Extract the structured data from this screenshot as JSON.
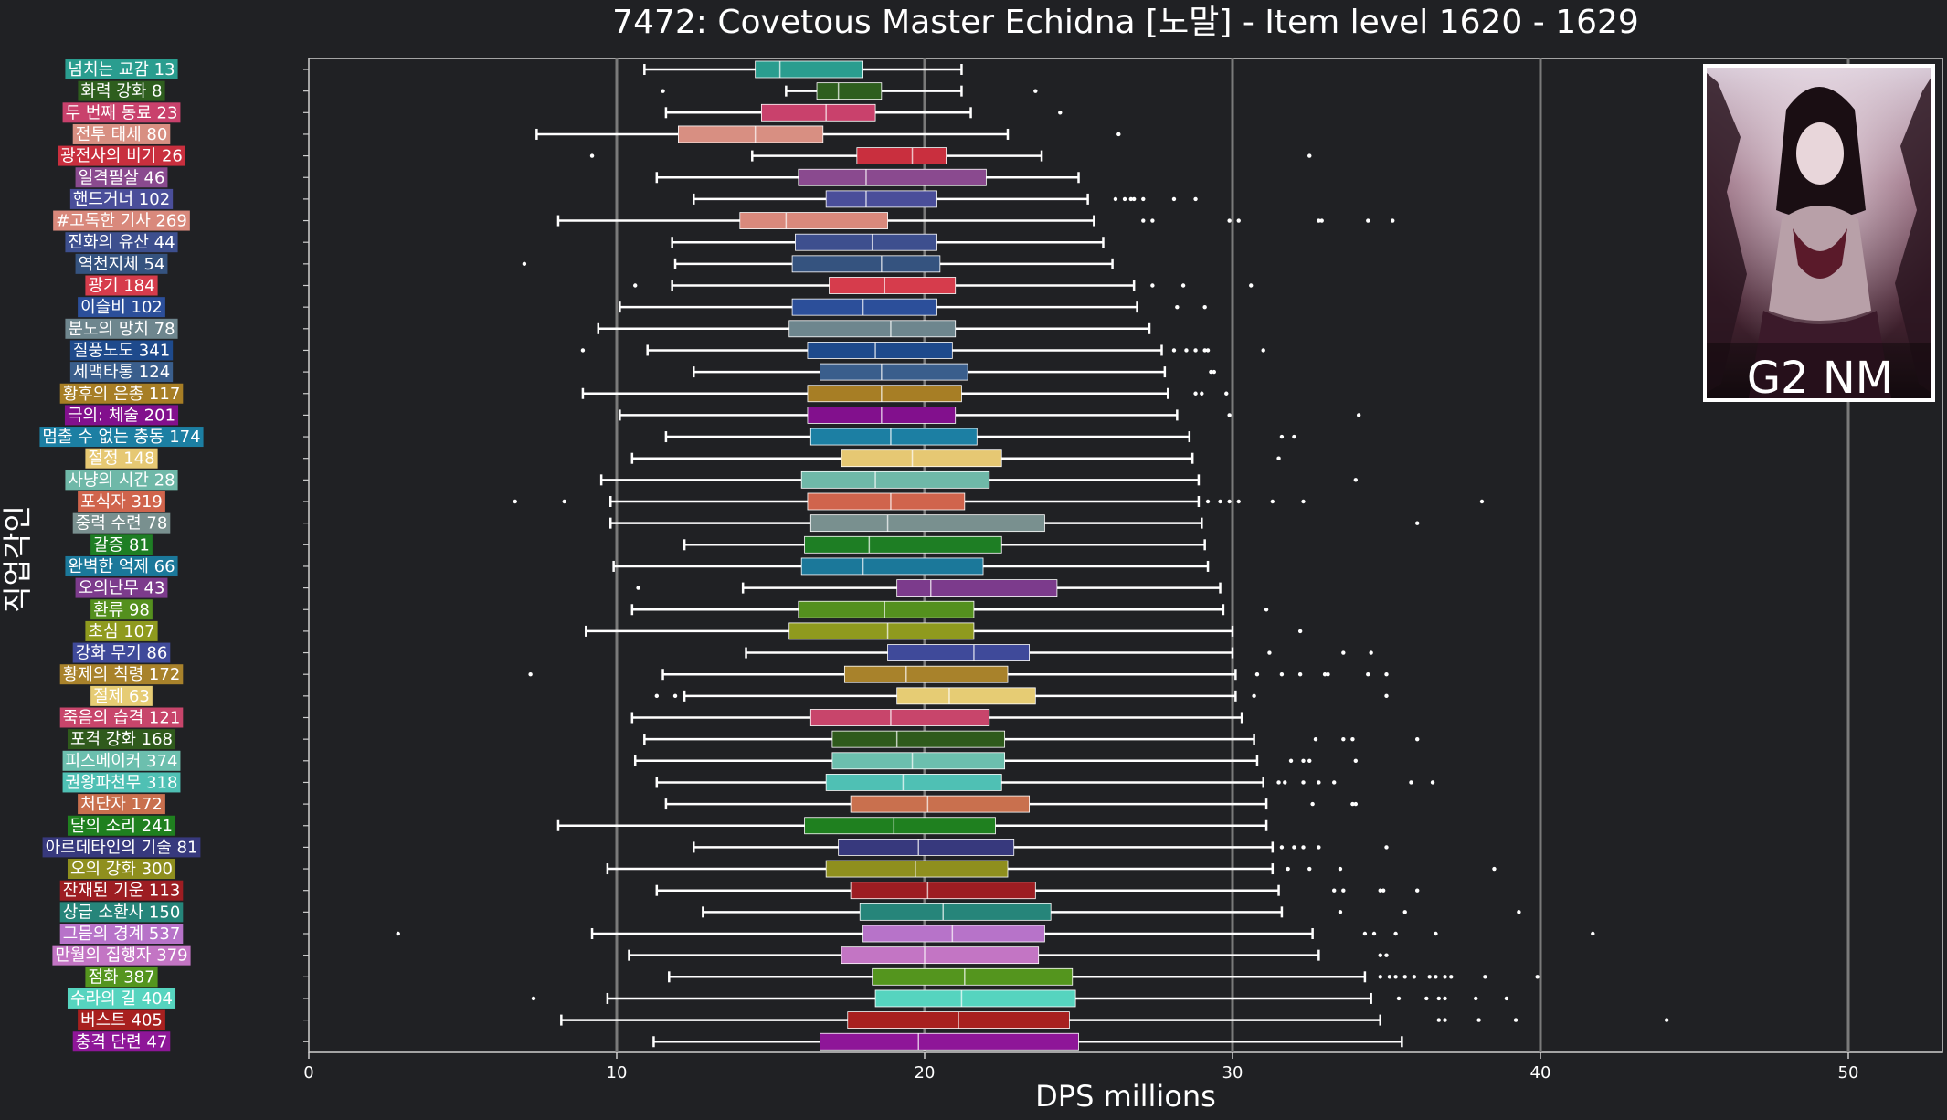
{
  "chart_data": {
    "type": "boxplot",
    "orientation": "horizontal",
    "title": "7472: Covetous Master Echidna [노말] - Item level 1620 - 1629",
    "xlabel": "DPS millions",
    "ylabel": "직업각인",
    "xlim": [
      0,
      53
    ],
    "xticks": [
      0,
      10,
      20,
      30,
      40,
      50
    ],
    "grid": "vertical",
    "background": "#202124",
    "badge": "G2 NM",
    "categories": [
      {
        "label": "넘치는 교감 13",
        "color": "#2a9d8f",
        "q1": 14.5,
        "med": 15.3,
        "q3": 18.0,
        "lo": 10.9,
        "hi": 21.2,
        "out": []
      },
      {
        "label": "화력 강화 8",
        "color": "#2e5e1e",
        "q1": 16.5,
        "med": 17.2,
        "q3": 18.6,
        "lo": 15.5,
        "hi": 21.2,
        "out": [
          11.5,
          23.6
        ]
      },
      {
        "label": "두 번째 동료 23",
        "color": "#c9416c",
        "q1": 14.7,
        "med": 16.8,
        "q3": 18.4,
        "lo": 11.6,
        "hi": 21.5,
        "out": [
          24.4
        ]
      },
      {
        "label": "전투 태세 80",
        "color": "#d88f82",
        "q1": 12.0,
        "med": 14.5,
        "q3": 16.7,
        "lo": 7.4,
        "hi": 22.7,
        "out": [
          26.3
        ]
      },
      {
        "label": "광전사의 비기 26",
        "color": "#c92f3e",
        "q1": 17.8,
        "med": 19.6,
        "q3": 20.7,
        "lo": 14.4,
        "hi": 23.8,
        "out": [
          9.2,
          32.5
        ]
      },
      {
        "label": "일격필살 46",
        "color": "#8a4a8f",
        "q1": 15.9,
        "med": 18.1,
        "q3": 22.0,
        "lo": 11.3,
        "hi": 25.0,
        "out": []
      },
      {
        "label": "핸드거너 102",
        "color": "#4a4e9a",
        "q1": 16.8,
        "med": 18.1,
        "q3": 20.4,
        "lo": 12.5,
        "hi": 25.3,
        "out": [
          26.2,
          26.5,
          26.7,
          26.8,
          27.1,
          28.1,
          28.8
        ]
      },
      {
        "label": "#고독한 기사 269",
        "color": "#d9897c",
        "q1": 14.0,
        "med": 15.5,
        "q3": 18.8,
        "lo": 8.1,
        "hi": 25.5,
        "out": [
          27.1,
          27.4,
          29.9,
          30.2,
          32.8,
          32.9,
          34.4,
          35.2
        ]
      },
      {
        "label": "진화의 유산 44",
        "color": "#3d4f8e",
        "q1": 15.8,
        "med": 18.3,
        "q3": 20.4,
        "lo": 11.8,
        "hi": 25.8,
        "out": []
      },
      {
        "label": "역천지체 54",
        "color": "#35537f",
        "q1": 15.7,
        "med": 18.6,
        "q3": 20.5,
        "lo": 11.9,
        "hi": 26.1,
        "out": [
          7.0
        ]
      },
      {
        "label": "광기 184",
        "color": "#d63c4c",
        "q1": 16.9,
        "med": 18.7,
        "q3": 21.0,
        "lo": 11.8,
        "hi": 26.8,
        "out": [
          10.6,
          27.4,
          28.4,
          30.6
        ]
      },
      {
        "label": "이슬비 102",
        "color": "#2c4f9a",
        "q1": 15.7,
        "med": 18.0,
        "q3": 20.4,
        "lo": 10.1,
        "hi": 26.9,
        "out": [
          28.2,
          29.1
        ]
      },
      {
        "label": "분노의 망치 78",
        "color": "#6e868e",
        "q1": 15.6,
        "med": 18.9,
        "q3": 21.0,
        "lo": 9.4,
        "hi": 27.3,
        "out": []
      },
      {
        "label": "질풍노도 341",
        "color": "#1e4a8c",
        "q1": 16.2,
        "med": 18.4,
        "q3": 20.9,
        "lo": 11.0,
        "hi": 27.7,
        "out": [
          8.9,
          28.1,
          28.5,
          28.8,
          29.1,
          29.2,
          31.0
        ]
      },
      {
        "label": "세맥타통 124",
        "color": "#3a5e8c",
        "q1": 16.6,
        "med": 18.6,
        "q3": 21.4,
        "lo": 12.5,
        "hi": 27.8,
        "out": [
          29.3,
          29.4
        ]
      },
      {
        "label": "황후의 은총 117",
        "color": "#a77e25",
        "q1": 16.2,
        "med": 18.6,
        "q3": 21.2,
        "lo": 8.9,
        "hi": 27.9,
        "out": [
          28.8,
          29.0,
          29.8
        ]
      },
      {
        "label": "극의: 체술 201",
        "color": "#82108d",
        "q1": 16.2,
        "med": 18.6,
        "q3": 21.0,
        "lo": 10.1,
        "hi": 28.2,
        "out": [
          29.9,
          34.1
        ]
      },
      {
        "label": "멈출 수 없는 충동 174",
        "color": "#1c7fa3",
        "q1": 16.3,
        "med": 18.9,
        "q3": 21.7,
        "lo": 11.6,
        "hi": 28.6,
        "out": [
          31.6,
          32.0
        ]
      },
      {
        "label": "절정 148",
        "color": "#e6c873",
        "q1": 17.3,
        "med": 19.6,
        "q3": 22.5,
        "lo": 10.5,
        "hi": 28.7,
        "out": [
          31.5
        ]
      },
      {
        "label": "사냥의 시간 28",
        "color": "#6fb8a8",
        "q1": 16.0,
        "med": 18.4,
        "q3": 22.1,
        "lo": 9.5,
        "hi": 28.9,
        "out": [
          34.0
        ]
      },
      {
        "label": "포식자 319",
        "color": "#d0644c",
        "q1": 16.2,
        "med": 18.9,
        "q3": 21.3,
        "lo": 9.8,
        "hi": 28.9,
        "out": [
          6.7,
          8.3,
          29.2,
          29.6,
          29.9,
          30.2,
          31.3,
          32.3,
          38.1
        ]
      },
      {
        "label": "중력 수련 78",
        "color": "#79908f",
        "q1": 16.3,
        "med": 18.8,
        "q3": 23.9,
        "lo": 9.8,
        "hi": 29.0,
        "out": [
          36.0
        ]
      },
      {
        "label": "갈증 81",
        "color": "#1e7e24",
        "q1": 16.1,
        "med": 18.2,
        "q3": 22.5,
        "lo": 12.2,
        "hi": 29.1,
        "out": []
      },
      {
        "label": "완벽한 억제 66",
        "color": "#1b789a",
        "q1": 16.0,
        "med": 18.0,
        "q3": 21.9,
        "lo": 9.9,
        "hi": 29.2,
        "out": []
      },
      {
        "label": "오의난무 43",
        "color": "#7c3b8c",
        "q1": 19.1,
        "med": 20.2,
        "q3": 24.3,
        "lo": 14.1,
        "hi": 29.6,
        "out": [
          10.7
        ]
      },
      {
        "label": "환류 98",
        "color": "#54901e",
        "q1": 15.9,
        "med": 18.7,
        "q3": 21.6,
        "lo": 10.5,
        "hi": 29.7,
        "out": [
          31.1
        ]
      },
      {
        "label": "초심 107",
        "color": "#8f9a1e",
        "q1": 15.6,
        "med": 18.8,
        "q3": 21.6,
        "lo": 9.0,
        "hi": 30.0,
        "out": [
          32.2
        ]
      },
      {
        "label": "강화 무기 86",
        "color": "#3f4a9a",
        "q1": 18.8,
        "med": 21.6,
        "q3": 23.4,
        "lo": 14.2,
        "hi": 30.0,
        "out": [
          31.2,
          33.6,
          34.5
        ]
      },
      {
        "label": "황제의 칙령 172",
        "color": "#a8822b",
        "q1": 17.4,
        "med": 19.4,
        "q3": 22.7,
        "lo": 11.5,
        "hi": 30.1,
        "out": [
          7.2,
          30.8,
          31.6,
          32.2,
          33.0,
          33.1,
          34.4,
          35.0
        ]
      },
      {
        "label": "절제 63",
        "color": "#e6cc74",
        "q1": 19.1,
        "med": 20.8,
        "q3": 23.6,
        "lo": 12.2,
        "hi": 30.1,
        "out": [
          11.3,
          11.9,
          30.7,
          35.0
        ]
      },
      {
        "label": "죽음의 습격 121",
        "color": "#c8456b",
        "q1": 16.3,
        "med": 18.9,
        "q3": 22.1,
        "lo": 10.5,
        "hi": 30.3,
        "out": []
      },
      {
        "label": "포격 강화 168",
        "color": "#2f5a1c",
        "q1": 17.0,
        "med": 19.1,
        "q3": 22.6,
        "lo": 10.9,
        "hi": 30.7,
        "out": [
          32.7,
          33.6,
          33.9,
          36.0
        ]
      },
      {
        "label": "피스메이커 374",
        "color": "#6cbfae",
        "q1": 17.0,
        "med": 19.6,
        "q3": 22.6,
        "lo": 10.6,
        "hi": 30.8,
        "out": [
          31.9,
          32.3,
          32.5,
          34.0
        ]
      },
      {
        "label": "권왕파천무 318",
        "color": "#4fc0b4",
        "q1": 16.8,
        "med": 19.3,
        "q3": 22.5,
        "lo": 11.3,
        "hi": 31.0,
        "out": [
          31.5,
          31.7,
          32.3,
          32.8,
          33.3,
          35.8,
          36.5
        ]
      },
      {
        "label": "처단자 172",
        "color": "#c9704e",
        "q1": 17.6,
        "med": 20.1,
        "q3": 23.4,
        "lo": 11.6,
        "hi": 31.1,
        "out": [
          32.6,
          33.9,
          34.0
        ]
      },
      {
        "label": "달의 소리 241",
        "color": "#1f801f",
        "q1": 16.1,
        "med": 19.0,
        "q3": 22.3,
        "lo": 8.1,
        "hi": 31.1,
        "out": []
      },
      {
        "label": "아르데타인의 기술 81",
        "color": "#37397d",
        "q1": 17.2,
        "med": 19.8,
        "q3": 22.9,
        "lo": 12.5,
        "hi": 31.3,
        "out": [
          31.6,
          32.0,
          32.3,
          32.8,
          35.0
        ]
      },
      {
        "label": "오의 강화 300",
        "color": "#8f8f1e",
        "q1": 16.8,
        "med": 19.7,
        "q3": 22.7,
        "lo": 9.7,
        "hi": 31.3,
        "out": [
          31.8,
          32.5,
          33.5,
          38.5
        ]
      },
      {
        "label": "잔재된 기운 113",
        "color": "#9d1d22",
        "q1": 17.6,
        "med": 20.1,
        "q3": 23.6,
        "lo": 11.3,
        "hi": 31.5,
        "out": [
          33.3,
          33.6,
          34.8,
          34.9,
          36.0
        ]
      },
      {
        "label": "상급 소환사 150",
        "color": "#26857a",
        "q1": 17.9,
        "med": 20.6,
        "q3": 24.1,
        "lo": 12.8,
        "hi": 31.6,
        "out": [
          33.5,
          35.6,
          39.3
        ]
      },
      {
        "label": "그믐의 경계 537",
        "color": "#b773c9",
        "q1": 18.0,
        "med": 20.9,
        "q3": 23.9,
        "lo": 9.2,
        "hi": 32.6,
        "out": [
          2.9,
          34.3,
          34.6,
          35.3,
          36.6,
          41.7
        ]
      },
      {
        "label": "만월의 집행자 379",
        "color": "#c375c4",
        "q1": 17.3,
        "med": 20.0,
        "q3": 23.7,
        "lo": 10.4,
        "hi": 32.8,
        "out": [
          34.8,
          35.0
        ]
      },
      {
        "label": "점화 387",
        "color": "#54951e",
        "q1": 18.3,
        "med": 21.3,
        "q3": 24.8,
        "lo": 11.7,
        "hi": 34.3,
        "out": [
          34.8,
          35.1,
          35.3,
          35.6,
          35.9,
          36.4,
          36.6,
          36.9,
          37.1,
          38.2,
          39.9
        ]
      },
      {
        "label": "수라의 길 404",
        "color": "#56d4bf",
        "q1": 18.4,
        "med": 21.2,
        "q3": 24.9,
        "lo": 9.7,
        "hi": 34.5,
        "out": [
          7.3,
          35.4,
          36.3,
          36.7,
          36.9,
          37.9,
          38.9
        ]
      },
      {
        "label": "버스트 405",
        "color": "#a8201f",
        "q1": 17.5,
        "med": 21.1,
        "q3": 24.7,
        "lo": 8.2,
        "hi": 34.8,
        "out": [
          36.7,
          36.9,
          38.0,
          39.2,
          44.1
        ]
      },
      {
        "label": "충격 단련 47",
        "color": "#8e1698",
        "q1": 16.6,
        "med": 19.8,
        "q3": 25.0,
        "lo": 11.2,
        "hi": 35.5,
        "out": []
      }
    ]
  }
}
